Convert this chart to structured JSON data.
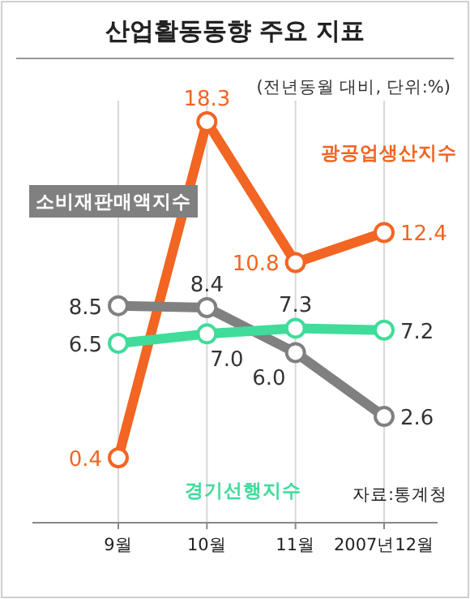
{
  "chart_data": {
    "type": "line",
    "title": "산업활동동향 주요 지표",
    "subtitle": "(전년동월 대비, 단위:%)",
    "categories": [
      "9월",
      "10월",
      "11월",
      "2007년12월"
    ],
    "series": [
      {
        "name": "광공업생산지수",
        "color": "#f26522",
        "values": [
          0.4,
          18.3,
          10.8,
          12.4
        ],
        "value_labels": [
          "0.4",
          "18.3",
          "10.8",
          "12.4"
        ]
      },
      {
        "name": "소비재판매액지수",
        "color": "#808080",
        "values": [
          8.5,
          8.4,
          6.0,
          2.6
        ],
        "value_labels": [
          "8.5",
          "8.4",
          "6.0",
          "2.6"
        ]
      },
      {
        "name": "경기선행지수",
        "color": "#3fdc9a",
        "values": [
          6.5,
          7.0,
          7.3,
          7.2
        ],
        "value_labels": [
          "6.5",
          "7.0",
          "7.3",
          "7.2"
        ]
      }
    ],
    "marker": "circle",
    "grid": "x",
    "legend": false,
    "annotations": [
      "자료:통계청"
    ]
  }
}
